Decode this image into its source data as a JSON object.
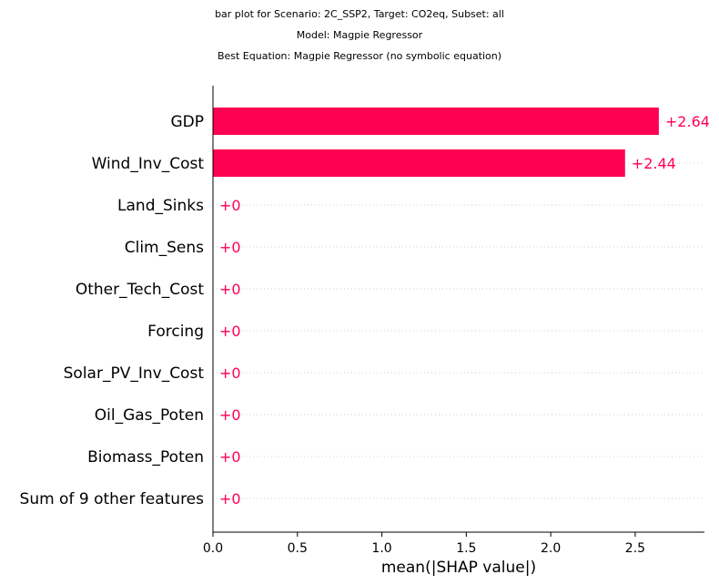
{
  "chart_data": {
    "type": "bar",
    "title_lines": [
      "bar plot for Scenario: 2C_SSP2, Target: CO2eq, Subset: all",
      "Model: Magpie Regressor",
      "Best Equation: Magpie Regressor (no symbolic equation)"
    ],
    "categories": [
      "GDP",
      "Wind_Inv_Cost",
      "Land_Sinks",
      "Clim_Sens",
      "Other_Tech_Cost",
      "Forcing",
      "Solar_PV_Inv_Cost",
      "Oil_Gas_Poten",
      "Biomass_Poten",
      "Sum of 9 other features"
    ],
    "values": [
      2.64,
      2.44,
      0,
      0,
      0,
      0,
      0,
      0,
      0,
      0
    ],
    "value_labels": [
      "+2.64",
      "+2.44",
      "+0",
      "+0",
      "+0",
      "+0",
      "+0",
      "+0",
      "+0",
      "+0"
    ],
    "xlabel": "mean(|SHAP value|)",
    "xticks": [
      "0.0",
      "0.5",
      "1.0",
      "1.5",
      "2.0",
      "2.5"
    ],
    "xtick_values": [
      0,
      0.5,
      1.0,
      1.5,
      2.0,
      2.5
    ],
    "xlim": [
      0,
      2.91
    ],
    "bar_color": "#ff0052",
    "label_color": "#ff0052",
    "grid": "dotted horizontal guides"
  }
}
